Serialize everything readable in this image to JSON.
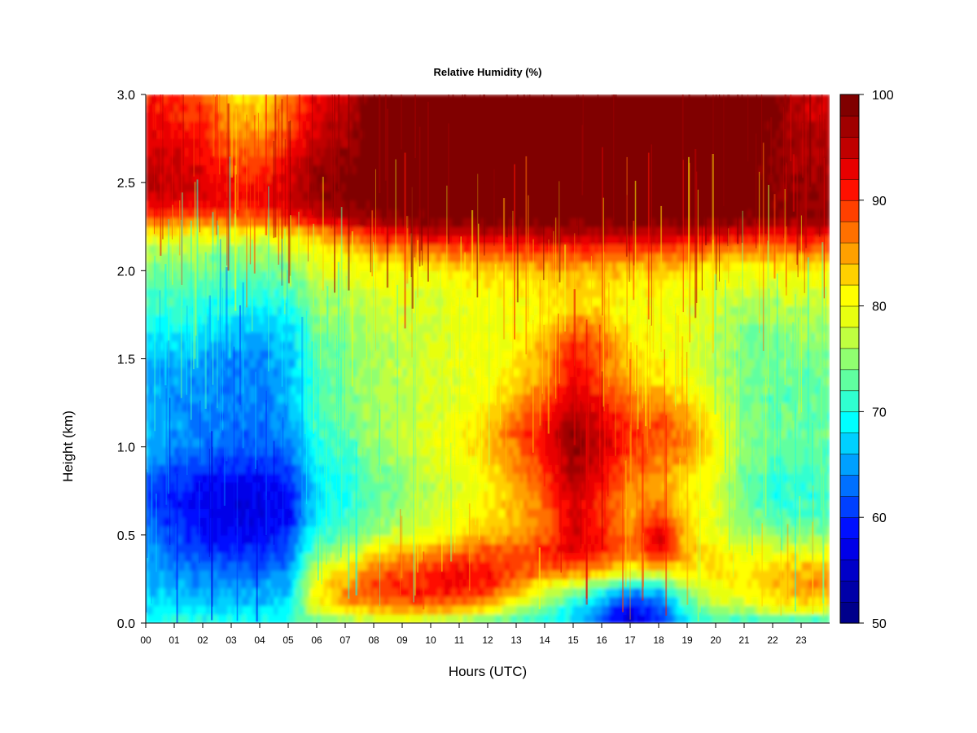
{
  "chart_data": {
    "type": "heatmap",
    "title": "Relative Humidity (%)",
    "xlabel": "Hours (UTC)",
    "ylabel": "Height (km)",
    "x_ticks": [
      "00",
      "01",
      "02",
      "03",
      "04",
      "05",
      "06",
      "07",
      "08",
      "09",
      "10",
      "11",
      "12",
      "13",
      "14",
      "15",
      "16",
      "17",
      "18",
      "19",
      "20",
      "21",
      "22",
      "23"
    ],
    "y_ticks": [
      "0.0",
      "0.5",
      "1.0",
      "1.5",
      "2.0",
      "2.5",
      "3.0"
    ],
    "xlim": [
      0,
      24
    ],
    "ylim": [
      0,
      3.0
    ],
    "heights_km": [
      0.0,
      0.1,
      0.2,
      0.3,
      0.4,
      0.5,
      0.6,
      0.7,
      0.8,
      0.9,
      1.0,
      1.1,
      1.2,
      1.3,
      1.4,
      1.5,
      1.6,
      1.7,
      1.8,
      1.9,
      2.0,
      2.1,
      2.2,
      2.3,
      2.4,
      2.5,
      2.6,
      2.7,
      2.8,
      2.9,
      3.0
    ],
    "hours": [
      0,
      1,
      2,
      3,
      4,
      5,
      6,
      7,
      8,
      9,
      10,
      11,
      12,
      13,
      14,
      15,
      16,
      17,
      18,
      19,
      20,
      21,
      22,
      23
    ],
    "rh_values": [
      [
        70,
        68,
        67,
        66,
        65,
        64,
        62,
        61,
        62,
        64,
        66,
        67,
        66,
        65,
        64,
        66,
        68,
        70,
        71,
        72,
        74,
        76,
        80,
        88,
        94,
        96,
        95,
        94,
        93,
        92,
        91
      ],
      [
        70,
        68,
        66,
        64,
        62,
        61,
        60,
        59,
        60,
        62,
        64,
        65,
        65,
        65,
        65,
        66,
        68,
        70,
        71,
        72,
        74,
        76,
        80,
        88,
        94,
        95,
        94,
        93,
        92,
        91,
        90
      ],
      [
        70,
        67,
        65,
        63,
        61,
        59,
        58,
        58,
        59,
        61,
        63,
        64,
        64,
        64,
        64,
        65,
        67,
        69,
        70,
        72,
        74,
        76,
        80,
        88,
        93,
        94,
        93,
        92,
        91,
        90,
        88
      ],
      [
        70,
        67,
        65,
        62,
        60,
        58,
        57,
        57,
        58,
        60,
        62,
        63,
        63,
        63,
        63,
        64,
        66,
        68,
        70,
        71,
        73,
        75,
        80,
        88,
        92,
        92,
        90,
        88,
        86,
        84,
        83
      ],
      [
        70,
        67,
        65,
        62,
        60,
        58,
        57,
        57,
        58,
        60,
        62,
        63,
        63,
        64,
        64,
        64,
        65,
        67,
        69,
        71,
        73,
        76,
        80,
        88,
        92,
        91,
        89,
        87,
        85,
        83,
        82
      ],
      [
        71,
        68,
        66,
        64,
        62,
        60,
        58,
        58,
        59,
        61,
        63,
        64,
        65,
        66,
        66,
        66,
        67,
        68,
        70,
        72,
        74,
        77,
        81,
        90,
        94,
        94,
        92,
        90,
        88,
        87,
        86
      ],
      [
        72,
        80,
        82,
        78,
        74,
        71,
        69,
        68,
        68,
        69,
        70,
        71,
        72,
        72,
        72,
        72,
        73,
        74,
        75,
        76,
        78,
        80,
        84,
        94,
        98,
        98,
        97,
        96,
        95,
        94,
        93
      ],
      [
        74,
        84,
        86,
        82,
        77,
        73,
        71,
        70,
        70,
        71,
        72,
        73,
        74,
        74,
        74,
        74,
        74,
        75,
        76,
        77,
        79,
        82,
        87,
        96,
        99,
        99,
        98,
        97,
        96,
        95,
        94
      ],
      [
        76,
        86,
        89,
        87,
        82,
        76,
        74,
        73,
        73,
        74,
        75,
        76,
        76,
        76,
        76,
        76,
        76,
        77,
        78,
        79,
        80,
        84,
        90,
        98,
        100,
        100,
        100,
        100,
        100,
        100,
        100
      ],
      [
        76,
        88,
        91,
        89,
        84,
        78,
        76,
        75,
        75,
        76,
        77,
        77,
        77,
        77,
        77,
        77,
        77,
        78,
        78,
        79,
        80,
        85,
        92,
        99,
        100,
        100,
        100,
        100,
        100,
        100,
        100
      ],
      [
        75,
        88,
        92,
        90,
        86,
        80,
        78,
        77,
        77,
        78,
        79,
        79,
        78,
        78,
        78,
        78,
        78,
        78,
        78,
        79,
        81,
        86,
        93,
        99,
        100,
        100,
        100,
        100,
        100,
        100,
        100
      ],
      [
        74,
        87,
        92,
        92,
        88,
        82,
        80,
        79,
        79,
        80,
        81,
        81,
        80,
        79,
        79,
        79,
        79,
        79,
        79,
        80,
        82,
        87,
        94,
        99,
        100,
        100,
        100,
        100,
        100,
        100,
        100
      ],
      [
        72,
        84,
        90,
        91,
        89,
        84,
        82,
        81,
        81,
        82,
        83,
        83,
        82,
        81,
        80,
        80,
        80,
        80,
        80,
        81,
        83,
        88,
        95,
        100,
        100,
        100,
        100,
        100,
        100,
        100,
        100
      ],
      [
        71,
        78,
        86,
        89,
        88,
        85,
        84,
        84,
        85,
        86,
        87,
        88,
        86,
        84,
        82,
        81,
        81,
        80,
        80,
        81,
        83,
        88,
        95,
        100,
        100,
        100,
        100,
        100,
        100,
        100,
        100
      ],
      [
        70,
        74,
        80,
        88,
        90,
        88,
        87,
        88,
        89,
        90,
        92,
        92,
        90,
        88,
        86,
        85,
        84,
        82,
        81,
        82,
        84,
        89,
        95,
        100,
        100,
        100,
        100,
        100,
        100,
        100,
        100
      ],
      [
        68,
        70,
        76,
        88,
        93,
        94,
        93,
        94,
        96,
        97,
        98,
        98,
        96,
        94,
        92,
        92,
        90,
        86,
        83,
        83,
        84,
        89,
        95,
        100,
        100,
        100,
        100,
        100,
        100,
        100,
        100
      ],
      [
        62,
        64,
        72,
        85,
        90,
        91,
        90,
        90,
        92,
        93,
        94,
        94,
        92,
        90,
        88,
        88,
        87,
        84,
        82,
        82,
        84,
        89,
        95,
        100,
        100,
        100,
        100,
        100,
        100,
        100,
        100
      ],
      [
        56,
        58,
        66,
        80,
        86,
        86,
        85,
        85,
        86,
        88,
        90,
        90,
        88,
        86,
        84,
        83,
        82,
        80,
        80,
        81,
        83,
        88,
        95,
        100,
        100,
        100,
        100,
        100,
        100,
        100,
        100
      ],
      [
        60,
        62,
        68,
        82,
        92,
        95,
        90,
        86,
        85,
        86,
        88,
        89,
        87,
        84,
        82,
        81,
        80,
        80,
        80,
        81,
        83,
        88,
        95,
        100,
        100,
        100,
        100,
        100,
        100,
        100,
        100
      ],
      [
        68,
        72,
        76,
        82,
        84,
        83,
        82,
        82,
        82,
        84,
        86,
        86,
        84,
        82,
        80,
        79,
        79,
        79,
        79,
        80,
        82,
        87,
        94,
        100,
        100,
        100,
        100,
        100,
        100,
        100,
        100
      ],
      [
        72,
        76,
        80,
        82,
        82,
        80,
        79,
        79,
        79,
        80,
        81,
        81,
        80,
        78,
        77,
        77,
        77,
        77,
        78,
        79,
        81,
        86,
        93,
        99,
        100,
        100,
        100,
        100,
        100,
        100,
        100
      ],
      [
        71,
        78,
        82,
        82,
        80,
        76,
        74,
        73,
        73,
        74,
        75,
        75,
        74,
        74,
        74,
        74,
        74,
        75,
        76,
        78,
        80,
        85,
        92,
        99,
        100,
        100,
        100,
        100,
        100,
        100,
        100
      ],
      [
        70,
        80,
        84,
        83,
        80,
        75,
        72,
        71,
        71,
        72,
        73,
        73,
        73,
        73,
        73,
        73,
        74,
        75,
        76,
        78,
        80,
        85,
        92,
        99,
        99,
        99,
        99,
        99,
        99,
        99,
        99
      ],
      [
        70,
        82,
        86,
        84,
        80,
        75,
        72,
        71,
        71,
        72,
        73,
        73,
        73,
        73,
        73,
        74,
        75,
        76,
        77,
        79,
        81,
        86,
        92,
        98,
        98,
        97,
        97,
        96,
        96,
        95,
        95
      ]
    ],
    "colorbar": {
      "ticks": [
        "50",
        "60",
        "70",
        "80",
        "90",
        "100"
      ],
      "min": 50,
      "max": 100,
      "levels": 25,
      "colors": [
        "#00008b",
        "#0000a8",
        "#0000c8",
        "#0000e8",
        "#0010ff",
        "#0040ff",
        "#0070ff",
        "#00a0ff",
        "#00d0ff",
        "#00ffff",
        "#30ffd0",
        "#60ffa0",
        "#90ff70",
        "#c0ff40",
        "#e8ff10",
        "#ffff00",
        "#ffd000",
        "#ffa000",
        "#ff7000",
        "#ff4000",
        "#ff1000",
        "#e80000",
        "#c00000",
        "#a00000",
        "#800000"
      ]
    }
  }
}
